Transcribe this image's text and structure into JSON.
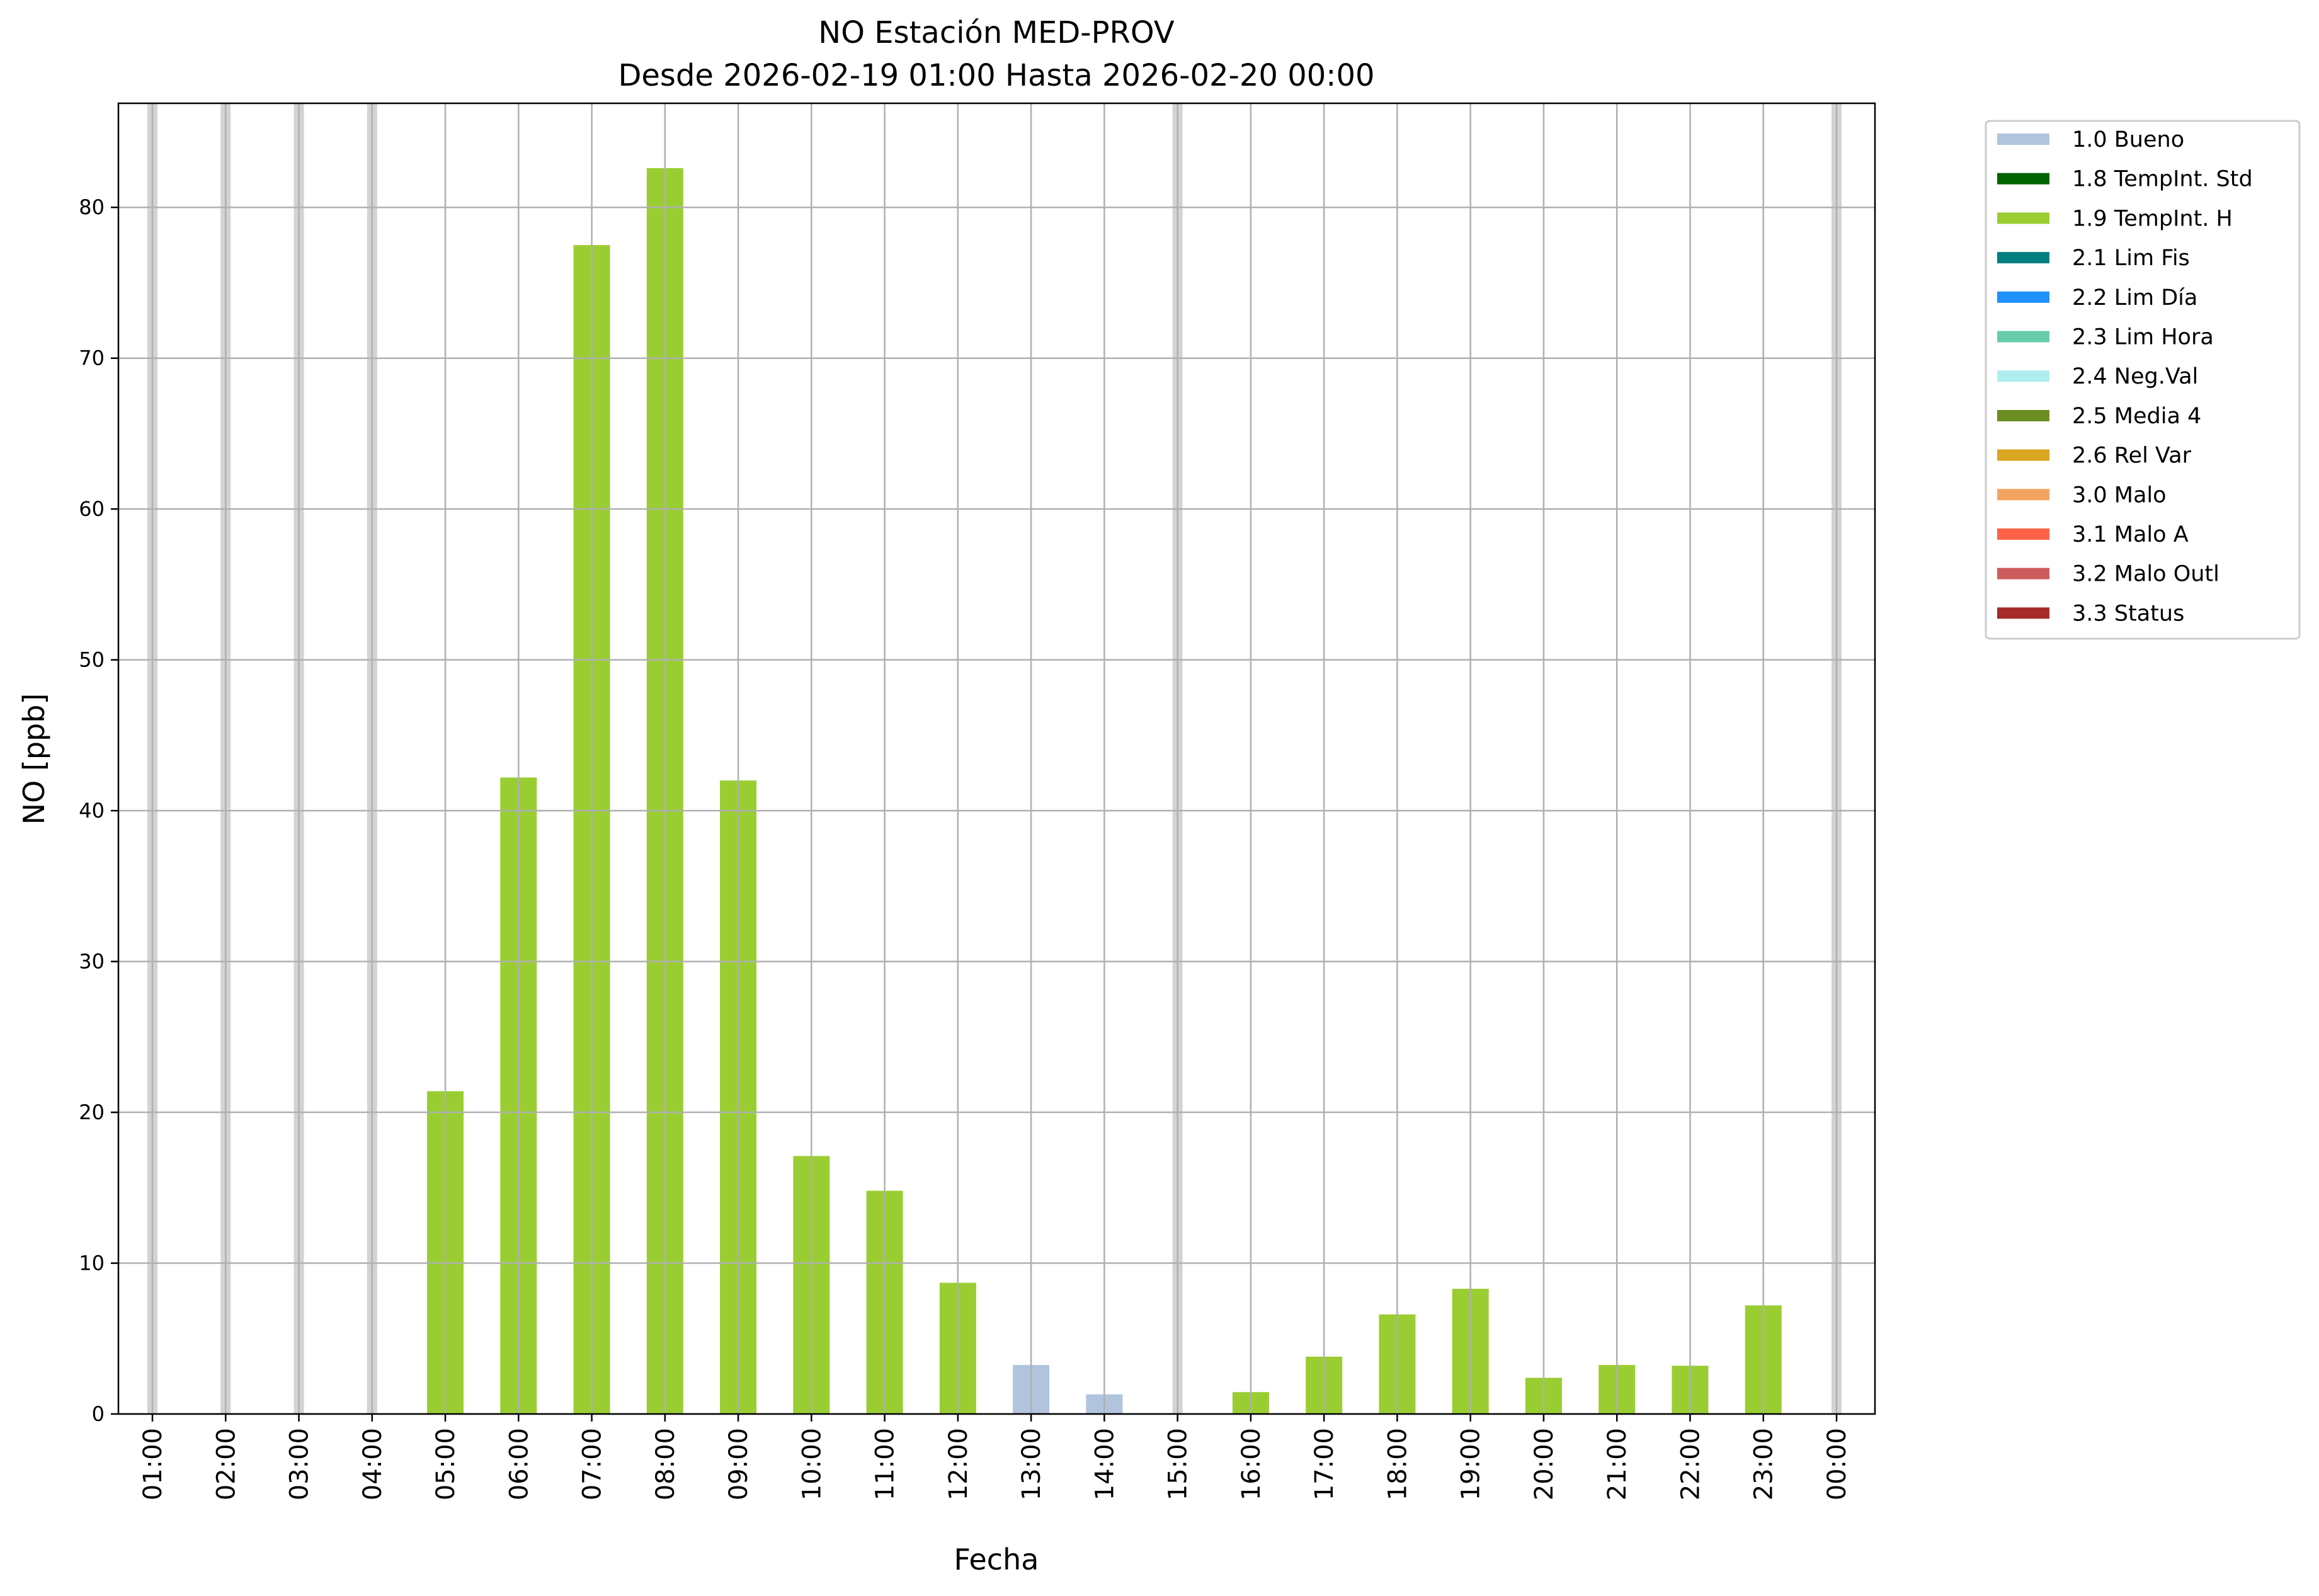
{
  "chart_data": {
    "type": "bar",
    "title": "NO Estación MED-PROV",
    "subtitle": "Desde 2026-02-19 01:00 Hasta 2026-02-20 00:00",
    "xlabel": "Fecha",
    "ylabel": "NO [ppb]",
    "ylim": [
      0,
      86.9
    ],
    "yticks": [
      0,
      10,
      20,
      30,
      40,
      50,
      60,
      70,
      80
    ],
    "grid": true,
    "legend_placement": "outside-top-right",
    "categories": [
      "01:00",
      "02:00",
      "03:00",
      "04:00",
      "05:00",
      "06:00",
      "07:00",
      "08:00",
      "09:00",
      "10:00",
      "11:00",
      "12:00",
      "13:00",
      "14:00",
      "15:00",
      "16:00",
      "17:00",
      "18:00",
      "19:00",
      "20:00",
      "21:00",
      "22:00",
      "23:00",
      "00:00"
    ],
    "values": [
      null,
      null,
      null,
      null,
      21.4,
      42.2,
      77.5,
      82.6,
      42.0,
      17.1,
      14.8,
      8.7,
      3.25,
      1.3,
      null,
      1.45,
      3.8,
      6.6,
      8.3,
      2.4,
      3.25,
      3.2,
      7.2,
      null
    ],
    "flags": [
      "missing",
      "missing",
      "missing",
      "missing",
      "1.9",
      "1.9",
      "1.9",
      "1.9",
      "1.9",
      "1.9",
      "1.9",
      "1.9",
      "1.0",
      "1.0",
      "missing",
      "1.9",
      "1.9",
      "1.9",
      "1.9",
      "1.9",
      "1.9",
      "1.9",
      "1.9",
      "missing"
    ],
    "missing_color": "#d3d3d3",
    "legend": [
      {
        "code": "1.0",
        "label": "1.0 Bueno",
        "color": "#b0c4de"
      },
      {
        "code": "1.8",
        "label": "1.8 TempInt. Std",
        "color": "#006400"
      },
      {
        "code": "1.9",
        "label": "1.9 TempInt. H",
        "color": "#9acd32"
      },
      {
        "code": "2.1",
        "label": "2.1 Lim Fis",
        "color": "#008080"
      },
      {
        "code": "2.2",
        "label": "2.2 Lim Día",
        "color": "#1e90ff"
      },
      {
        "code": "2.3",
        "label": "2.3 Lim Hora",
        "color": "#66cdaa"
      },
      {
        "code": "2.4",
        "label": "2.4 Neg.Val",
        "color": "#afeeee"
      },
      {
        "code": "2.5",
        "label": "2.5 Media 4",
        "color": "#6b8e23"
      },
      {
        "code": "2.6",
        "label": "2.6 Rel Var",
        "color": "#daa520"
      },
      {
        "code": "3.0",
        "label": "3.0 Malo",
        "color": "#f4a460"
      },
      {
        "code": "3.1",
        "label": "3.1 Malo A",
        "color": "#ff6347"
      },
      {
        "code": "3.2",
        "label": "3.2 Malo Outl",
        "color": "#cd5c5c"
      },
      {
        "code": "3.3",
        "label": "3.3 Status",
        "color": "#a52a2a"
      }
    ]
  }
}
